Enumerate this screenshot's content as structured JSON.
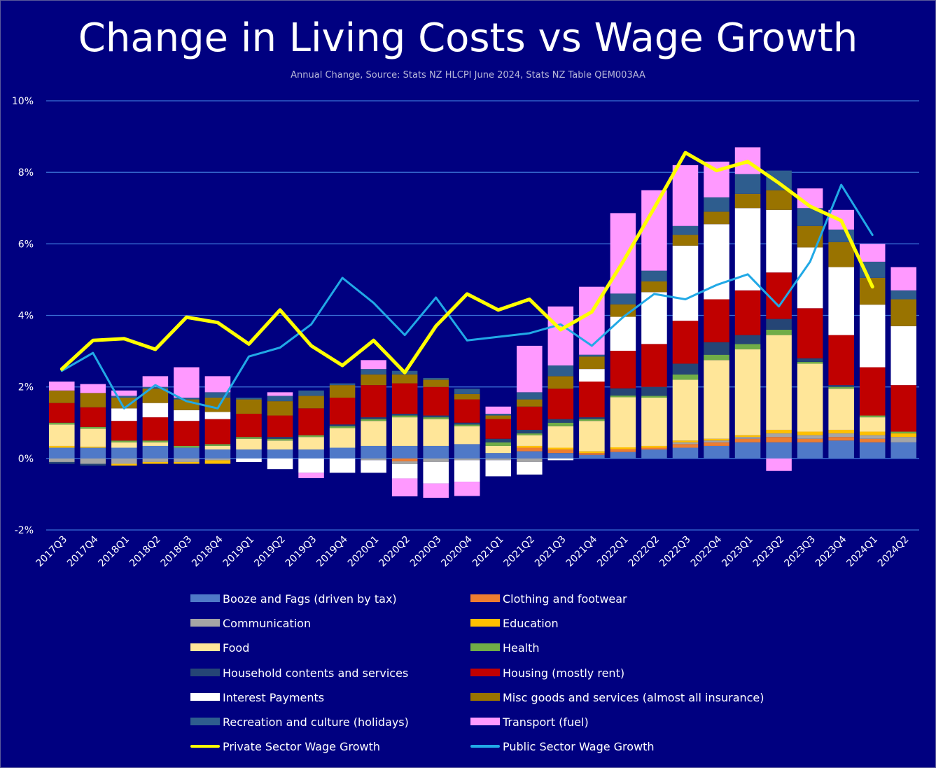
{
  "chart_data": {
    "type": "bar",
    "stacked": true,
    "title": "Change in Living Costs vs Wage Growth",
    "subtitle": "Annual Change, Source: Stats NZ HLCPI June 2024, Stats NZ Table QEM003AA",
    "xlabel": "",
    "ylabel": "",
    "ylim": [
      -2,
      10
    ],
    "yticks": [
      -2,
      0,
      2,
      4,
      6,
      8,
      10
    ],
    "ytick_labels": [
      "-2%",
      "0%",
      "2%",
      "4%",
      "6%",
      "8%",
      "10%"
    ],
    "grid": true,
    "legend_position": "bottom",
    "categories": [
      "2017Q3",
      "2017Q4",
      "2018Q1",
      "2018Q2",
      "2018Q3",
      "2018Q4",
      "2019Q1",
      "2019Q2",
      "2019Q3",
      "2019Q4",
      "2020Q1",
      "2020Q2",
      "2020Q3",
      "2020Q4",
      "2021Q1",
      "2021Q2",
      "2021Q3",
      "2021Q4",
      "2022Q1",
      "2022Q2",
      "2022Q3",
      "2022Q4",
      "2023Q1",
      "2023Q2",
      "2023Q3",
      "2023Q4",
      "2024Q1",
      "2024Q2"
    ],
    "series": [
      {
        "name": "Booze and Fags (driven by tax)",
        "color": "#4f79c8",
        "kind": "bar",
        "values": [
          0.3,
          0.3,
          0.3,
          0.35,
          0.3,
          0.25,
          0.25,
          0.25,
          0.25,
          0.3,
          0.35,
          0.35,
          0.35,
          0.4,
          0.15,
          0.2,
          0.15,
          0.1,
          0.18,
          0.25,
          0.3,
          0.35,
          0.45,
          0.45,
          0.45,
          0.5,
          0.45,
          0.45
        ]
      },
      {
        "name": "Clothing and footwear",
        "color": "#ed7d31",
        "kind": "bar",
        "values": [
          0.0,
          0.0,
          0.0,
          0.0,
          0.0,
          0.0,
          0.0,
          0.0,
          0.0,
          0.0,
          0.0,
          -0.08,
          0.0,
          0.0,
          0.0,
          0.1,
          0.1,
          0.05,
          0.08,
          0.05,
          0.1,
          0.1,
          0.1,
          0.15,
          0.1,
          0.1,
          0.1,
          0.0
        ]
      },
      {
        "name": "Communication",
        "color": "#a5a5a5",
        "kind": "bar",
        "values": [
          -0.1,
          -0.15,
          -0.15,
          -0.1,
          -0.1,
          -0.05,
          0.0,
          0.0,
          0.0,
          0.0,
          -0.05,
          -0.08,
          -0.1,
          -0.05,
          -0.05,
          -0.1,
          0.0,
          0.0,
          0.0,
          0.0,
          0.05,
          0.05,
          0.05,
          0.1,
          0.1,
          0.1,
          0.1,
          0.15
        ]
      },
      {
        "name": "Education",
        "color": "#ffc000",
        "kind": "bar",
        "values": [
          0.05,
          0.03,
          -0.05,
          -0.05,
          -0.05,
          -0.1,
          0.0,
          0.0,
          0.0,
          0.0,
          0.0,
          0.0,
          0.0,
          0.0,
          0.0,
          0.05,
          0.05,
          0.05,
          0.05,
          0.05,
          0.05,
          0.05,
          0.05,
          0.1,
          0.1,
          0.1,
          0.1,
          0.1
        ]
      },
      {
        "name": "Food",
        "color": "#ffe699",
        "kind": "bar",
        "values": [
          0.6,
          0.5,
          0.15,
          0.1,
          0.0,
          0.1,
          0.3,
          0.25,
          0.35,
          0.55,
          0.7,
          0.8,
          0.75,
          0.5,
          0.2,
          0.3,
          0.6,
          0.85,
          1.4,
          1.35,
          1.7,
          2.2,
          2.4,
          2.65,
          1.9,
          1.15,
          0.4,
          0.0
        ]
      },
      {
        "name": "Health",
        "color": "#70ad47",
        "kind": "bar",
        "values": [
          0.05,
          0.05,
          0.05,
          0.05,
          0.05,
          0.05,
          0.05,
          0.05,
          0.05,
          0.05,
          0.05,
          0.05,
          0.05,
          0.05,
          0.1,
          0.05,
          0.1,
          0.05,
          0.05,
          0.05,
          0.15,
          0.15,
          0.15,
          0.15,
          0.05,
          0.05,
          0.05,
          0.05
        ]
      },
      {
        "name": "Household contents and services",
        "color": "#254575",
        "kind": "bar",
        "values": [
          -0.05,
          -0.05,
          0.0,
          0.0,
          0.0,
          0.0,
          0.0,
          0.05,
          0.0,
          0.05,
          0.05,
          0.05,
          0.05,
          0.05,
          0.1,
          0.1,
          0.1,
          0.05,
          0.2,
          0.25,
          0.3,
          0.35,
          0.25,
          0.3,
          0.1,
          0.05,
          0.0,
          0.0
        ]
      },
      {
        "name": "Housing (mostly rent)",
        "color": "#c00000",
        "kind": "bar",
        "values": [
          0.55,
          0.55,
          0.55,
          0.65,
          0.7,
          0.7,
          0.65,
          0.6,
          0.75,
          0.75,
          0.9,
          0.85,
          0.8,
          0.65,
          0.55,
          0.65,
          0.85,
          1.0,
          1.05,
          1.2,
          1.2,
          1.2,
          1.25,
          1.3,
          1.4,
          1.4,
          1.35,
          1.3
        ]
      },
      {
        "name": "Interest Payments",
        "color": "#ffffff",
        "kind": "bar",
        "values": [
          0.0,
          0.0,
          0.35,
          0.4,
          0.3,
          0.2,
          -0.1,
          -0.3,
          -0.4,
          -0.4,
          -0.35,
          -0.4,
          -0.6,
          -0.6,
          -0.45,
          -0.35,
          -0.05,
          0.35,
          0.95,
          1.45,
          2.1,
          2.1,
          2.3,
          1.75,
          1.7,
          1.9,
          1.75,
          1.65
        ]
      },
      {
        "name": "Misc goods and services (almost all insurance)",
        "color": "#997300",
        "kind": "bar",
        "values": [
          0.35,
          0.4,
          0.3,
          0.4,
          0.3,
          0.4,
          0.4,
          0.4,
          0.35,
          0.35,
          0.3,
          0.25,
          0.2,
          0.15,
          0.1,
          0.2,
          0.35,
          0.35,
          0.35,
          0.3,
          0.3,
          0.35,
          0.4,
          0.55,
          0.6,
          0.7,
          0.75,
          0.75
        ]
      },
      {
        "name": "Recreation and culture (holidays)",
        "color": "#2e5d8e",
        "kind": "bar",
        "values": [
          0.0,
          0.0,
          0.05,
          0.05,
          0.05,
          0.15,
          0.05,
          0.15,
          0.15,
          0.05,
          0.15,
          0.1,
          0.05,
          0.15,
          0.05,
          0.2,
          0.3,
          0.05,
          0.3,
          0.3,
          0.25,
          0.4,
          0.55,
          0.55,
          0.5,
          0.35,
          0.45,
          0.25
        ]
      },
      {
        "name": "Transport (fuel)",
        "color": "#ff99ff",
        "kind": "bar",
        "values": [
          0.25,
          0.25,
          0.15,
          0.3,
          0.85,
          0.45,
          0.0,
          0.1,
          -0.15,
          0.0,
          0.25,
          -0.5,
          -0.4,
          -0.4,
          0.2,
          1.3,
          1.65,
          1.9,
          2.25,
          2.25,
          1.7,
          1.0,
          0.75,
          -0.35,
          0.55,
          0.55,
          0.5,
          0.65
        ]
      },
      {
        "name": "Private Sector Wage Growth",
        "color": "#ffff00",
        "kind": "line",
        "width": 5,
        "values": [
          2.5,
          3.3,
          3.35,
          3.05,
          3.95,
          3.8,
          3.2,
          4.15,
          3.15,
          2.6,
          3.3,
          2.4,
          3.7,
          4.6,
          4.15,
          4.45,
          3.6,
          4.1,
          5.5,
          7.0,
          8.55,
          8.05,
          8.3,
          7.7,
          7.05,
          6.65,
          4.8,
          null
        ]
      },
      {
        "name": "Public Sector Wage Growth",
        "color": "#21a9e6",
        "kind": "line",
        "width": 3,
        "values": [
          2.45,
          2.95,
          1.4,
          2.05,
          1.6,
          1.4,
          2.85,
          3.1,
          3.75,
          5.05,
          4.35,
          3.45,
          4.5,
          3.3,
          3.4,
          3.5,
          3.75,
          3.15,
          3.95,
          4.6,
          4.45,
          4.85,
          5.15,
          4.25,
          5.5,
          7.65,
          6.25,
          null
        ]
      }
    ]
  }
}
